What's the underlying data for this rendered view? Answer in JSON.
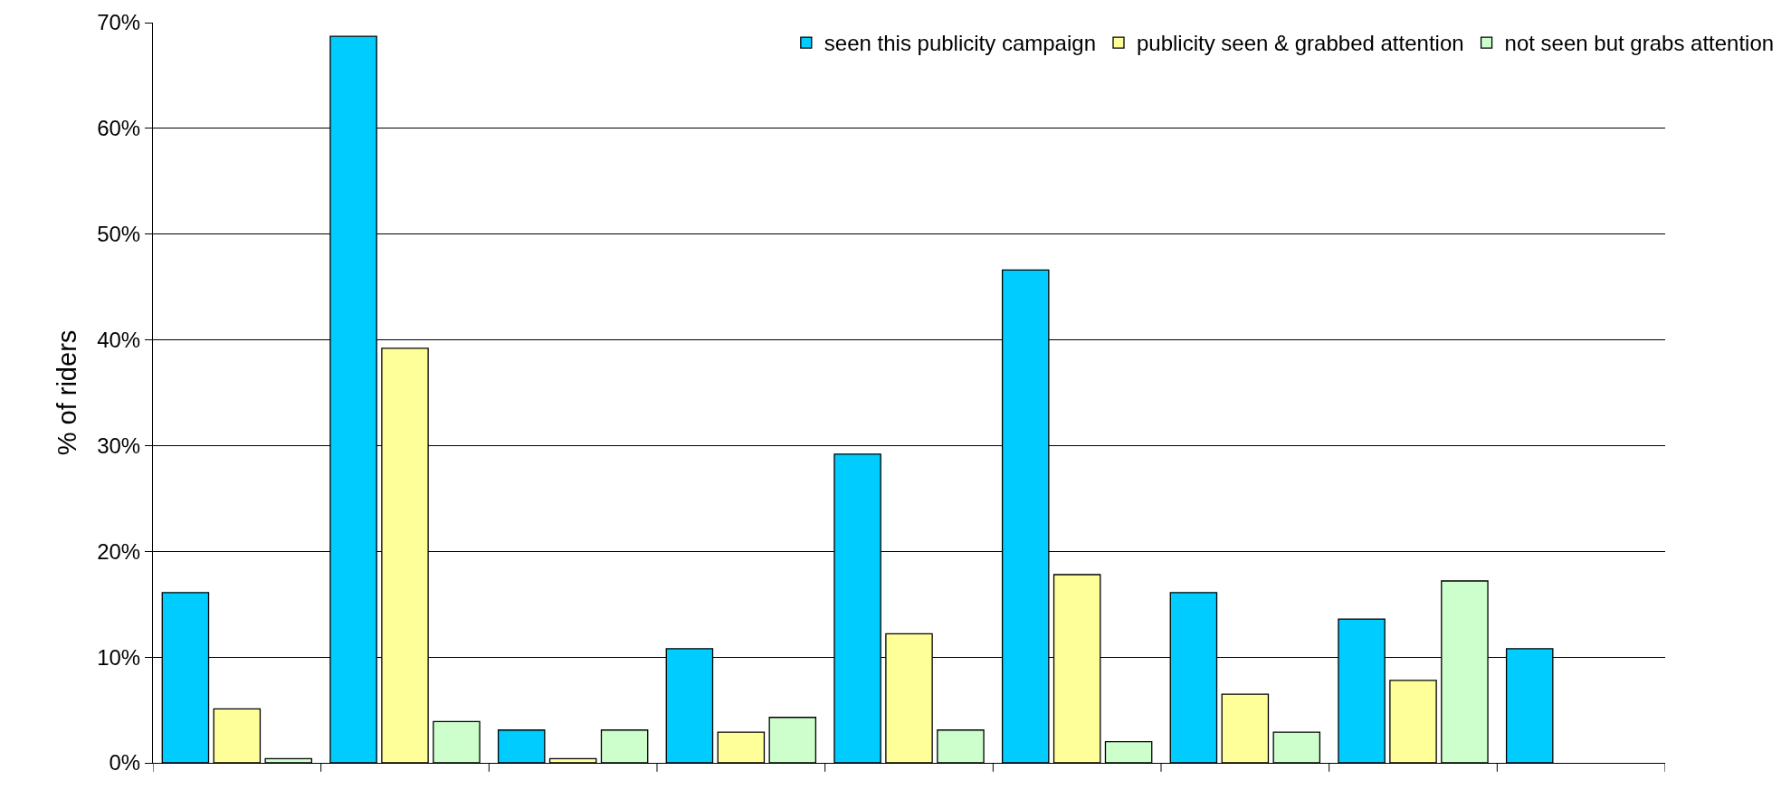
{
  "chart_data": {
    "type": "bar",
    "ylabel": "% of riders",
    "categories": [
      null,
      null,
      null,
      null,
      null,
      null,
      null,
      null,
      null
    ],
    "series": [
      {
        "name": "seen this publicity campaign",
        "color": "#00ccff",
        "values": [
          16.1,
          68.7,
          3.1,
          10.8,
          29.2,
          46.6,
          16.1,
          13.6,
          10.8
        ]
      },
      {
        "name": "publicity seen & grabbed attention",
        "color": "#ffff99",
        "values": [
          5.1,
          39.2,
          0.4,
          2.9,
          12.2,
          17.8,
          6.5,
          7.8,
          null
        ]
      },
      {
        "name": "not seen but grabs attention",
        "color": "#ccffcc",
        "values": [
          0.4,
          3.9,
          3.1,
          4.3,
          3.1,
          2.0,
          2.9,
          17.2,
          null
        ]
      }
    ],
    "ylim": [
      0,
      70
    ],
    "yticks": [
      {
        "value": 0,
        "label": "0%"
      },
      {
        "value": 10,
        "label": "10%"
      },
      {
        "value": 20,
        "label": "20%"
      },
      {
        "value": 30,
        "label": "30%"
      },
      {
        "value": 40,
        "label": "40%"
      },
      {
        "value": 50,
        "label": "50%"
      },
      {
        "value": 60,
        "label": "60%"
      },
      {
        "value": 70,
        "label": "70%"
      }
    ],
    "grid": "y",
    "legend": "top right"
  }
}
